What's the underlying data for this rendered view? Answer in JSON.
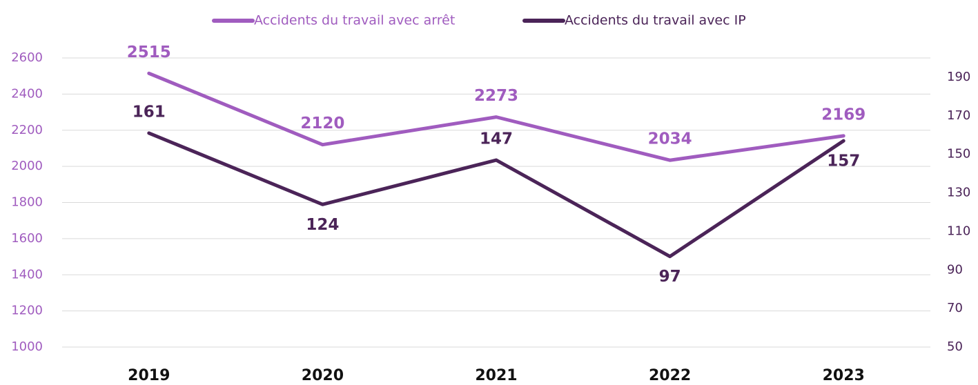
{
  "chart_data": {
    "type": "line",
    "categories": [
      "2019",
      "2020",
      "2021",
      "2022",
      "2023"
    ],
    "series": [
      {
        "name": "Accidents du travail avec arrêt",
        "color": "#a05cbf",
        "values": [
          2515,
          2120,
          2273,
          2034,
          2169
        ]
      },
      {
        "name": "Accidents du travail avec IP",
        "color": "#4b2458",
        "values": [
          161,
          124,
          147,
          97,
          157
        ],
        "axis": "y2"
      }
    ],
    "ylim": [
      1000,
      2600
    ],
    "yticks": [
      1000,
      1200,
      1400,
      1600,
      1800,
      2000,
      2200,
      2400,
      2600
    ],
    "y2lim": [
      50,
      200
    ],
    "y2ticks": [
      50,
      70,
      90,
      110,
      130,
      150,
      170,
      190
    ],
    "grid": true,
    "legend": "top"
  }
}
